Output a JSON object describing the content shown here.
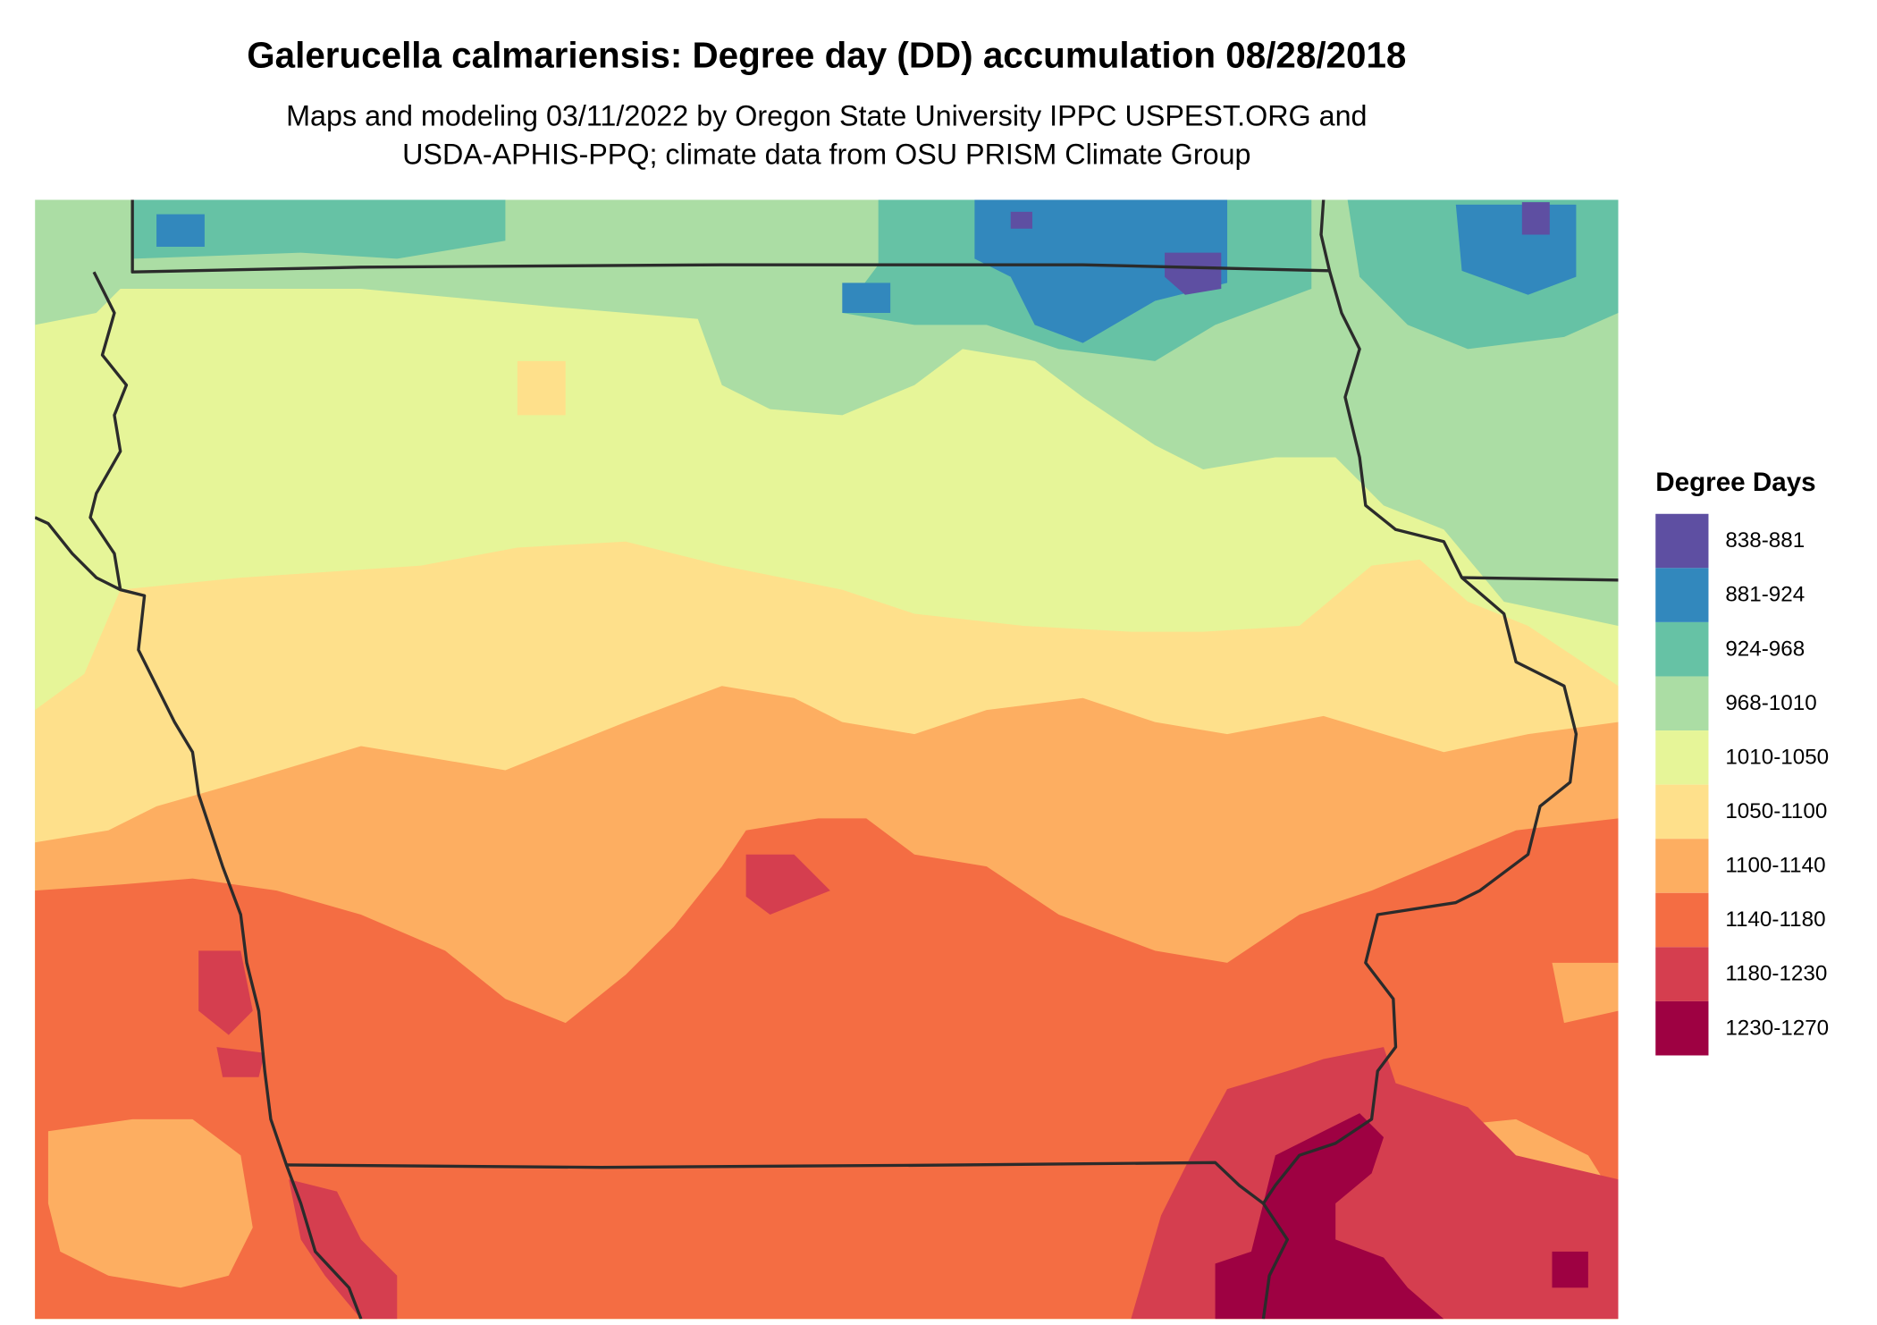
{
  "header": {
    "title": "Galerucella calmariensis: Degree day (DD) accumulation 08/28/2018",
    "subtitle": [
      "Maps and modeling 03/11/2022 by Oregon State University IPPC USPEST.ORG and",
      "USDA-APHIS-PPQ; climate data from OSU PRISM Climate Group"
    ]
  },
  "legend": {
    "title": "Degree Days",
    "items": [
      {
        "label": "838-881",
        "color": "#5e4fa2"
      },
      {
        "label": "881-924",
        "color": "#3288bd"
      },
      {
        "label": "924-968",
        "color": "#66c2a5"
      },
      {
        "label": "968-1010",
        "color": "#abdda4"
      },
      {
        "label": "1010-1050",
        "color": "#e6f598"
      },
      {
        "label": "1050-1100",
        "color": "#fee08b"
      },
      {
        "label": "1100-1140",
        "color": "#fdae61"
      },
      {
        "label": "1140-1180",
        "color": "#f46d43"
      },
      {
        "label": "1180-1230",
        "color": "#d53e4f"
      },
      {
        "label": "1230-1270",
        "color": "#9e0142"
      }
    ]
  }
}
